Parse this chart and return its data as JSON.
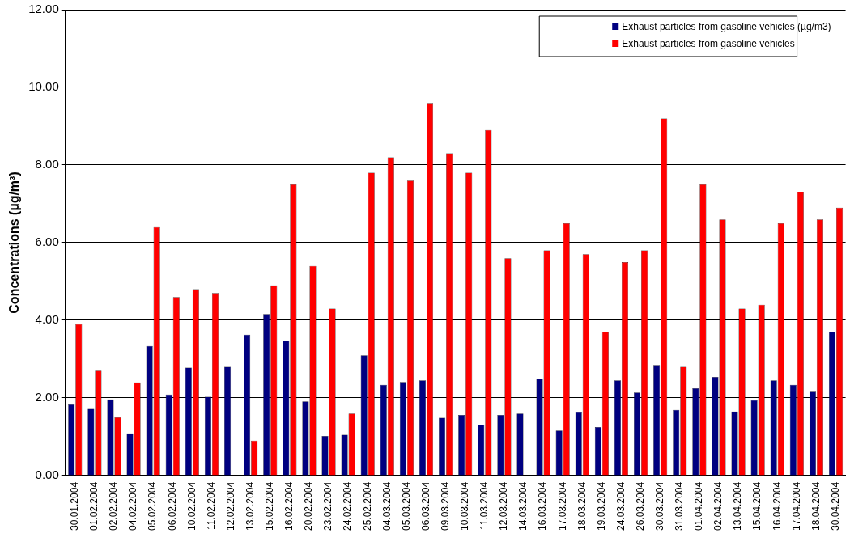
{
  "chart_data": {
    "type": "bar",
    "ylabel": "Concentrations (µg/m³)",
    "categories": [
      "30.01.2004",
      "01.02.2004",
      "02.02.2004",
      "04.02.2004",
      "05.02.2004",
      "06.02.2004",
      "10.02.2004",
      "11.02.2004",
      "12.02.2004",
      "13.02.2004",
      "15.02.2004",
      "16.02.2004",
      "20.02.2004",
      "23.02.2004",
      "24.02.2004",
      "25.02.2004",
      "04.03.2004",
      "05.03.2004",
      "06.03.2004",
      "09.03.2004",
      "10.03.2004",
      "11.03.2004",
      "12.03.2004",
      "14.03.2004",
      "16.03.2004",
      "17.03.2004",
      "18.03.2004",
      "19.03.2004",
      "24.03.2004",
      "26.03.2004",
      "30.03.2004",
      "31.03.2004",
      "01.04.2004",
      "02.04.2004",
      "13.04.2004",
      "15.04.2004",
      "16.04.2004",
      "17.04.2004",
      "18.04.2004",
      "30.04.2004"
    ],
    "series": [
      {
        "name": "Exhaust particles from gasoline vehicles (µg/m3)",
        "color": "#000080",
        "values": [
          1.83,
          1.72,
          1.96,
          1.09,
          3.34,
          2.09,
          2.78,
          2.03,
          2.8,
          3.63,
          4.16,
          3.47,
          1.91,
          1.02,
          1.05,
          3.1,
          2.34,
          2.41,
          2.45,
          1.49,
          1.56,
          1.31,
          1.56,
          1.6,
          2.49,
          1.16,
          1.63,
          1.25,
          2.45,
          2.14,
          2.85,
          1.69,
          2.25,
          2.54,
          1.65,
          1.94,
          2.45,
          2.34,
          2.16,
          3.7
        ]
      },
      {
        "name": "Exhaust particles from gasoline vehicles",
        "color": "#ff0000",
        "values": [
          3.9,
          2.7,
          1.5,
          2.4,
          6.4,
          4.6,
          4.8,
          4.7,
          null,
          0.9,
          4.9,
          7.5,
          5.4,
          4.3,
          1.6,
          7.8,
          8.2,
          7.6,
          9.6,
          8.3,
          7.8,
          8.9,
          5.6,
          null,
          5.8,
          6.5,
          5.7,
          3.7,
          5.5,
          5.8,
          9.2,
          2.8,
          7.5,
          6.6,
          4.3,
          4.4,
          6.5,
          7.3,
          6.6,
          6.9
        ]
      }
    ],
    "ylim": [
      0,
      12
    ],
    "yticks": [
      {
        "value": 0,
        "label": "0.00"
      },
      {
        "value": 2,
        "label": "2.00"
      },
      {
        "value": 4,
        "label": "4.00"
      },
      {
        "value": 6,
        "label": "6.00"
      },
      {
        "value": 8,
        "label": "8.00"
      },
      {
        "value": 10,
        "label": "10.00"
      },
      {
        "value": 12,
        "label": "12.00"
      }
    ],
    "grid": "y",
    "legend": "top right"
  }
}
